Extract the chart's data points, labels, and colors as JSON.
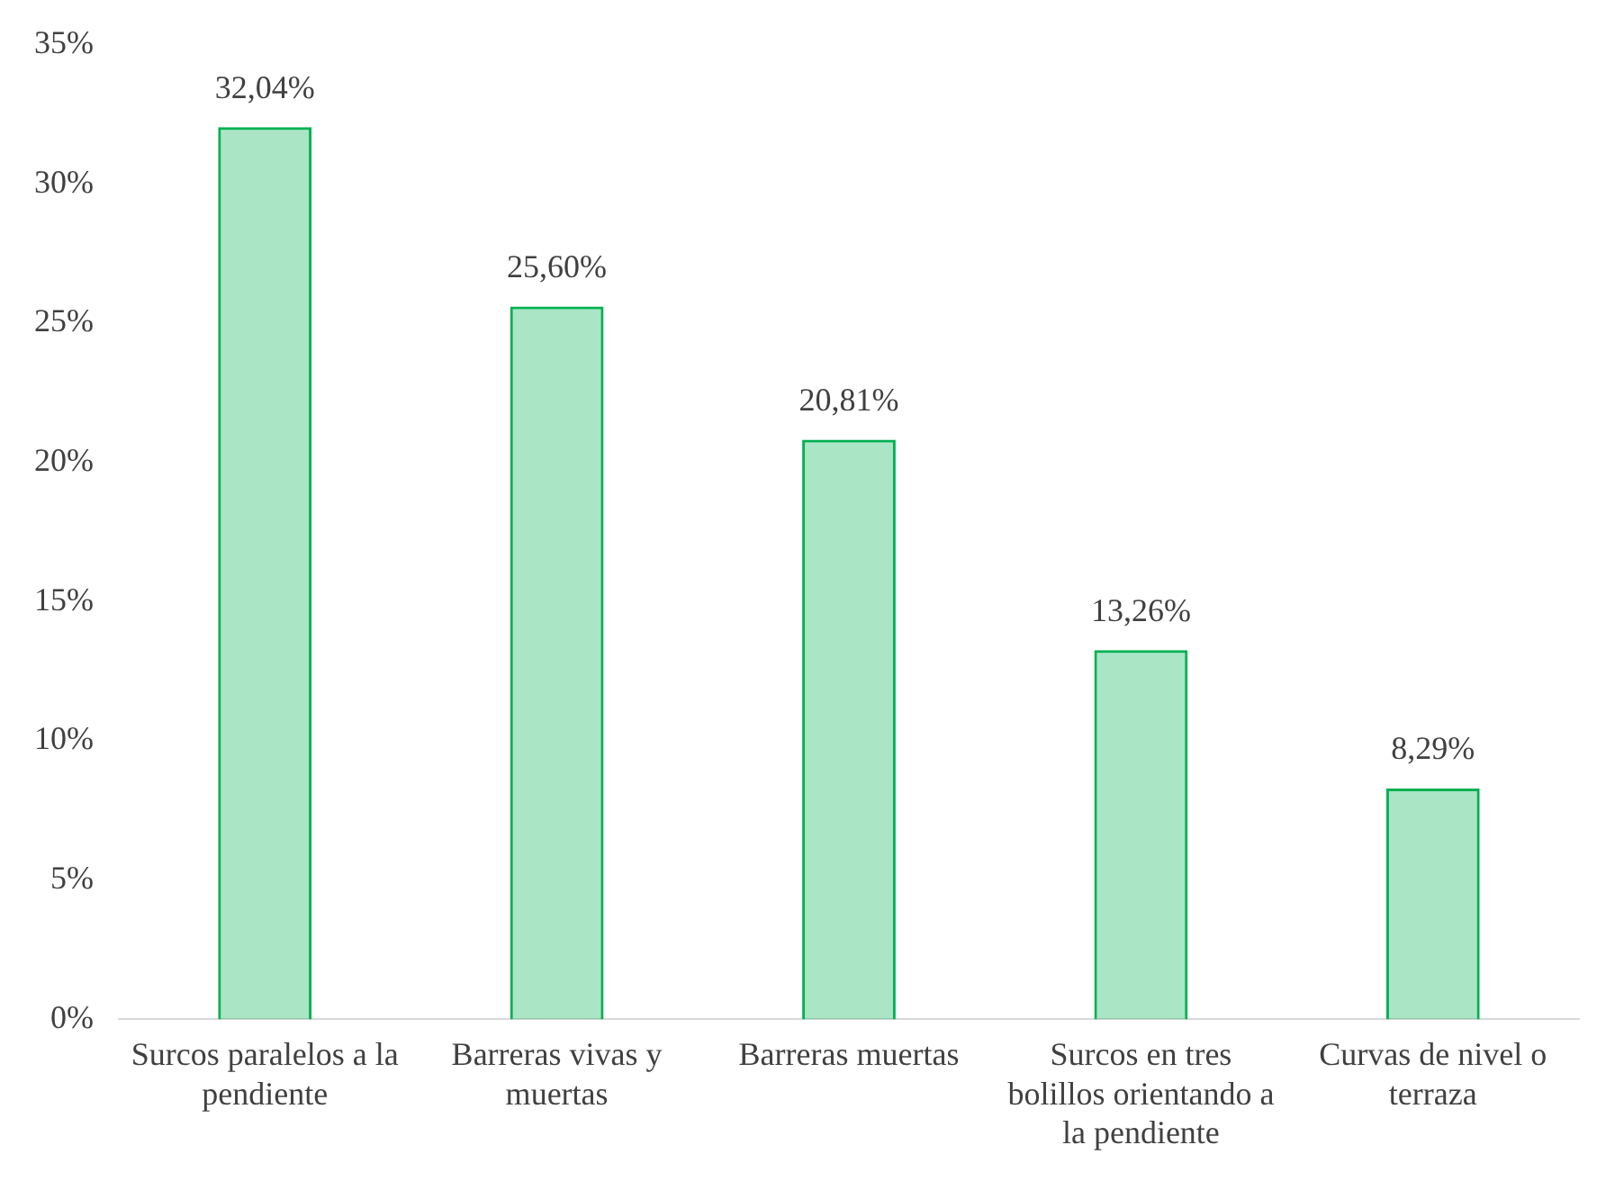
{
  "chart_data": {
    "type": "bar",
    "categories": [
      "Surcos paralelos a la pendiente",
      "Barreras vivas y muertas",
      "Barreras muertas",
      "Surcos en tres bolillos orientando a la pendiente",
      "Curvas de nivel o terraza"
    ],
    "values": [
      32.04,
      25.6,
      20.81,
      13.26,
      8.29
    ],
    "value_labels": [
      "32,04%",
      "25,60%",
      "20,81%",
      "13,26%",
      "8,29%"
    ],
    "color": "#00b050",
    "ylim": [
      0,
      35
    ],
    "yticks": [
      {
        "value": 0,
        "label": "0%"
      },
      {
        "value": 5,
        "label": "5%"
      },
      {
        "value": 10,
        "label": "10%"
      },
      {
        "value": 15,
        "label": "15%"
      },
      {
        "value": 20,
        "label": "20%"
      },
      {
        "value": 25,
        "label": "25%"
      },
      {
        "value": 30,
        "label": "30%"
      },
      {
        "value": 35,
        "label": "35%"
      }
    ],
    "grid": false,
    "legend": false
  }
}
